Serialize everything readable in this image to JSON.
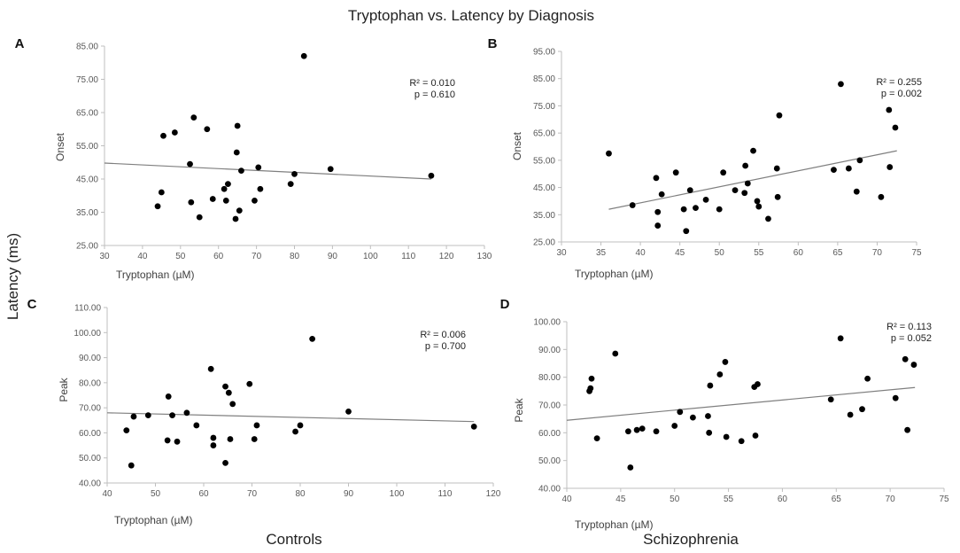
{
  "figure": {
    "title": "Tryptophan  vs. Latency by Diagnosis",
    "y_label": "Latency (ms)",
    "group_left": "Controls",
    "group_right": "Schizophrenia"
  },
  "chart_data": [
    {
      "panel": "A",
      "type": "scatter",
      "xlabel": "Tryptophan (µM)",
      "ylabel": "Onset",
      "xlim": [
        30,
        130
      ],
      "ylim": [
        25,
        85
      ],
      "xticks": [
        "30",
        "40",
        "50",
        "60",
        "70",
        "80",
        "90",
        "100",
        "110",
        "120",
        "130"
      ],
      "yticks": [
        "25.00",
        "35.00",
        "45.00",
        "55.00",
        "65.00",
        "75.00",
        "85.00"
      ],
      "stats": [
        "R² = 0.010",
        "p = 0.610"
      ],
      "trendline": [
        [
          30,
          49.8
        ],
        [
          116,
          45.0
        ]
      ],
      "points": [
        [
          44,
          36.8
        ],
        [
          45,
          41
        ],
        [
          45.5,
          58
        ],
        [
          48.5,
          59
        ],
        [
          52.5,
          49.5
        ],
        [
          52.8,
          38
        ],
        [
          53.5,
          63.5
        ],
        [
          55,
          33.5
        ],
        [
          57,
          60
        ],
        [
          58.5,
          39
        ],
        [
          61.5,
          42
        ],
        [
          62,
          38.5
        ],
        [
          62.5,
          43.5
        ],
        [
          64.5,
          33
        ],
        [
          64.8,
          53
        ],
        [
          65,
          61
        ],
        [
          65.5,
          35.5
        ],
        [
          66,
          47.5
        ],
        [
          69.5,
          38.5
        ],
        [
          70.5,
          48.5
        ],
        [
          71,
          42
        ],
        [
          79,
          43.5
        ],
        [
          80,
          46.5
        ],
        [
          82.5,
          82
        ],
        [
          89.5,
          48
        ],
        [
          116,
          46
        ]
      ]
    },
    {
      "panel": "B",
      "type": "scatter",
      "xlabel": "Tryptophan (µM)",
      "ylabel": "Onset",
      "xlim": [
        30,
        75
      ],
      "ylim": [
        25,
        95
      ],
      "xticks": [
        "30",
        "35",
        "40",
        "45",
        "50",
        "55",
        "60",
        "65",
        "70",
        "75"
      ],
      "yticks": [
        "25.00",
        "35.00",
        "45.00",
        "55.00",
        "65.00",
        "75.00",
        "85.00",
        "95.00"
      ],
      "stats": [
        "R² = 0.255",
        "p = 0.002"
      ],
      "trendline": [
        [
          36,
          37
        ],
        [
          72.5,
          58.5
        ]
      ],
      "points": [
        [
          36,
          57.5
        ],
        [
          39,
          38.5
        ],
        [
          42,
          48.5
        ],
        [
          42.2,
          36
        ],
        [
          42.2,
          31
        ],
        [
          42.7,
          42.5
        ],
        [
          44.5,
          50.5
        ],
        [
          45.5,
          37
        ],
        [
          45.8,
          29
        ],
        [
          46.3,
          44
        ],
        [
          47,
          37.5
        ],
        [
          48.3,
          40.5
        ],
        [
          50,
          37
        ],
        [
          50.5,
          50.5
        ],
        [
          52,
          44
        ],
        [
          53.2,
          43
        ],
        [
          53.3,
          53
        ],
        [
          53.6,
          46.5
        ],
        [
          54.3,
          58.5
        ],
        [
          54.8,
          40
        ],
        [
          55,
          38
        ],
        [
          56.2,
          33.5
        ],
        [
          57.3,
          52
        ],
        [
          57.4,
          41.5
        ],
        [
          57.6,
          71.5
        ],
        [
          64.5,
          51.5
        ],
        [
          65.4,
          83
        ],
        [
          66.4,
          52
        ],
        [
          67.4,
          43.5
        ],
        [
          67.8,
          55
        ],
        [
          70.5,
          41.5
        ],
        [
          71.5,
          73.5
        ],
        [
          71.6,
          52.5
        ],
        [
          72.3,
          67
        ]
      ]
    },
    {
      "panel": "C",
      "type": "scatter",
      "xlabel": "Tryptophan (µM)",
      "ylabel": "Peak",
      "xlim": [
        40,
        120
      ],
      "ylim": [
        40,
        110
      ],
      "xticks": [
        "40",
        "50",
        "60",
        "70",
        "80",
        "90",
        "100",
        "110",
        "120"
      ],
      "yticks": [
        "40.00",
        "50.00",
        "60.00",
        "70.00",
        "80.00",
        "90.00",
        "100.00",
        "110.00"
      ],
      "stats": [
        "R² = 0.006",
        "p = 0.700"
      ],
      "trendline": [
        [
          40,
          68
        ],
        [
          116,
          64.5
        ]
      ],
      "points": [
        [
          44,
          61
        ],
        [
          45,
          47
        ],
        [
          45.5,
          66.5
        ],
        [
          48.5,
          67
        ],
        [
          52.5,
          57
        ],
        [
          52.7,
          74.5
        ],
        [
          53.5,
          67
        ],
        [
          54.5,
          56.5
        ],
        [
          56.5,
          68
        ],
        [
          58.5,
          63
        ],
        [
          61.5,
          85.5
        ],
        [
          62,
          58
        ],
        [
          62,
          55
        ],
        [
          64.5,
          78.5
        ],
        [
          64.5,
          48
        ],
        [
          65.2,
          76
        ],
        [
          65.5,
          57.5
        ],
        [
          66,
          71.5
        ],
        [
          69.5,
          79.5
        ],
        [
          70.5,
          57.5
        ],
        [
          71,
          63
        ],
        [
          79,
          60.5
        ],
        [
          80,
          63
        ],
        [
          82.5,
          97.5
        ],
        [
          90,
          68.5
        ],
        [
          116,
          62.5
        ]
      ]
    },
    {
      "panel": "D",
      "type": "scatter",
      "xlabel": "Tryptophan (µM)",
      "ylabel": "Peak",
      "xlim": [
        40,
        75
      ],
      "ylim": [
        40,
        100
      ],
      "xticks": [
        "40",
        "45",
        "50",
        "55",
        "60",
        "65",
        "70",
        "75"
      ],
      "yticks": [
        "40.00",
        "50.00",
        "60.00",
        "70.00",
        "80.00",
        "90.00",
        "100.00"
      ],
      "stats": [
        "R² = 0.113",
        "p = 0.052"
      ],
      "trendline": [
        [
          40,
          64.5
        ],
        [
          72.3,
          76.3
        ]
      ],
      "points": [
        [
          42.1,
          75
        ],
        [
          42.2,
          76
        ],
        [
          42.3,
          79.5
        ],
        [
          42.8,
          58
        ],
        [
          44.5,
          88.5
        ],
        [
          45.7,
          60.5
        ],
        [
          45.9,
          47.5
        ],
        [
          46.5,
          61
        ],
        [
          47,
          61.5
        ],
        [
          48.3,
          60.5
        ],
        [
          50,
          62.5
        ],
        [
          50.5,
          67.5
        ],
        [
          51.7,
          65.5
        ],
        [
          53.1,
          66
        ],
        [
          53.2,
          60
        ],
        [
          53.3,
          77
        ],
        [
          54.2,
          81
        ],
        [
          54.7,
          85.5
        ],
        [
          54.8,
          58.5
        ],
        [
          56.2,
          57
        ],
        [
          57.4,
          76.5
        ],
        [
          57.5,
          59
        ],
        [
          57.7,
          77.5
        ],
        [
          64.5,
          72
        ],
        [
          65.4,
          94
        ],
        [
          66.3,
          66.5
        ],
        [
          67.4,
          68.5
        ],
        [
          67.9,
          79.5
        ],
        [
          70.5,
          72.5
        ],
        [
          71.4,
          86.5
        ],
        [
          71.6,
          61
        ],
        [
          72.2,
          84.5
        ]
      ]
    }
  ]
}
